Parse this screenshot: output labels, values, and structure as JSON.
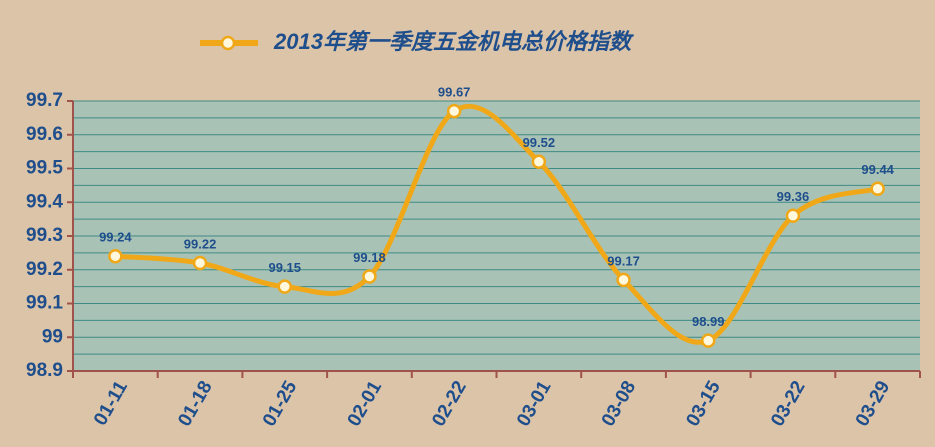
{
  "chart_data": {
    "type": "line",
    "categories": [
      "01-11",
      "01-18",
      "01-25",
      "02-01",
      "02-22",
      "03-01",
      "03-08",
      "03-15",
      "03-22",
      "03-29"
    ],
    "series": [
      {
        "name": "2013年第一季度五金机电总价格指数",
        "color": "#f0a818",
        "values": [
          99.24,
          99.22,
          99.15,
          99.18,
          99.67,
          99.52,
          99.17,
          98.99,
          99.36,
          99.44
        ]
      }
    ],
    "ylim": [
      98.9,
      99.7
    ],
    "yticks": [
      98.9,
      99,
      99.1,
      99.2,
      99.3,
      99.4,
      99.5,
      99.6,
      99.7
    ],
    "grid": true,
    "smooth": true,
    "legend": "top"
  }
}
